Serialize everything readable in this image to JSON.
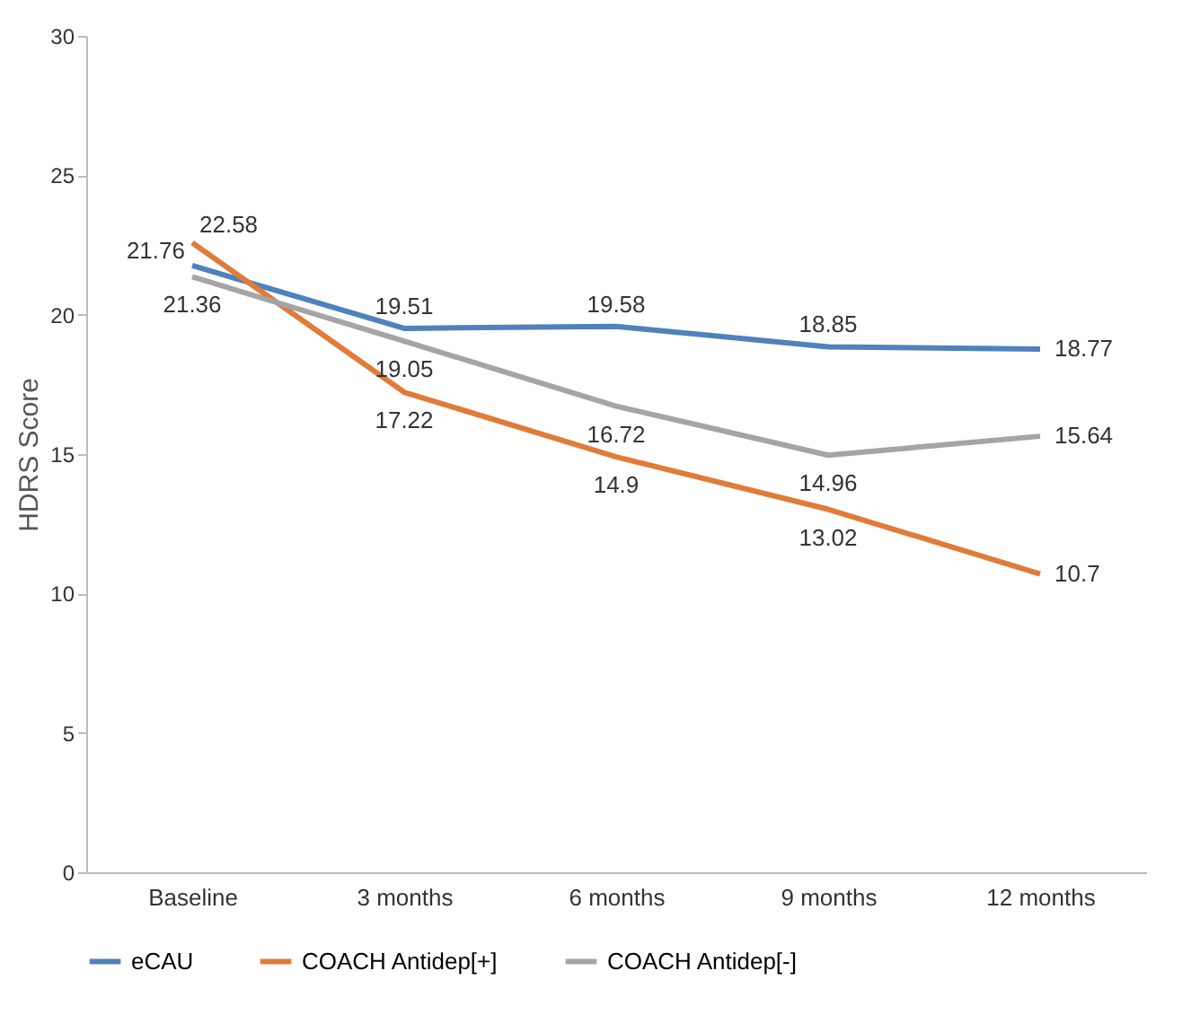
{
  "chart_data": {
    "type": "line",
    "ylabel": "HDRS Score",
    "categories": [
      "Baseline",
      "3 months",
      "6 months",
      "9 months",
      "12 months"
    ],
    "series": [
      {
        "name": "eCAU",
        "color": "#4f81bd",
        "values": [
          21.76,
          19.51,
          19.58,
          18.85,
          18.77
        ]
      },
      {
        "name": "COACH Antidep[+]",
        "color": "#e07b39",
        "values": [
          22.58,
          17.22,
          14.9,
          13.02,
          10.7
        ]
      },
      {
        "name": "COACH Antidep[-]",
        "color": "#a5a5a5",
        "values": [
          21.36,
          19.05,
          16.72,
          14.96,
          15.64
        ]
      }
    ],
    "ylim": [
      0,
      30
    ],
    "yticks": [
      0,
      5,
      10,
      15,
      20,
      25,
      30
    ],
    "grid": false,
    "legend": "bottom",
    "data_labels": true,
    "marker": "none",
    "line_style": "solid"
  }
}
